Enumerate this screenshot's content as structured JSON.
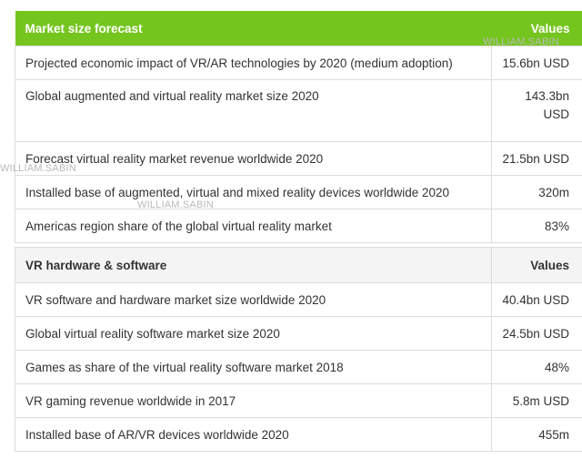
{
  "table1": {
    "header": {
      "label": "Market size forecast",
      "value": "Values"
    },
    "rows": [
      {
        "label": "Projected economic impact of VR/AR technologies by 2020 (medium adoption)",
        "value": "15.6bn USD"
      },
      {
        "label": "Global augmented and virtual reality market size 2020",
        "value": "143.3bn USD"
      },
      {
        "label": "Forecast virtual reality market revenue worldwide 2020",
        "value": "21.5bn USD"
      },
      {
        "label": "Installed base of augmented, virtual and mixed reality devices worldwide 2020",
        "value": "320m"
      },
      {
        "label": "Americas region share of the global virtual reality market",
        "value": "83%"
      }
    ]
  },
  "table2": {
    "header": {
      "label": "VR hardware & software",
      "value": "Values"
    },
    "rows": [
      {
        "label": "VR software and hardware market size worldwide 2020",
        "value": "40.4bn USD"
      },
      {
        "label": "Global virtual reality software market size 2020",
        "value": "24.5bn USD"
      },
      {
        "label": "Games as share of the virtual reality software market 2018",
        "value": "48%"
      },
      {
        "label": "VR gaming revenue worldwide in 2017",
        "value": "5.8m USD"
      },
      {
        "label": "Installed base of AR/VR devices worldwide 2020",
        "value": "455m"
      }
    ]
  },
  "watermarks": [
    "WILLIAM.SABIN",
    "WILLIAM.SABIN",
    "WILLIAM.SABIN"
  ],
  "colors": {
    "header_green": "#75c51f",
    "header_gray": "#f4f4f4",
    "border": "#dcdcdc"
  }
}
